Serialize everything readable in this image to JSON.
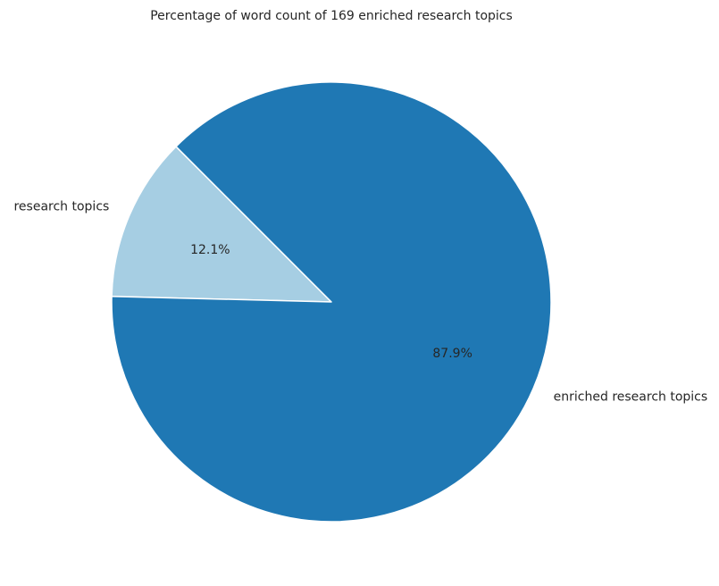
{
  "chart_data": {
    "type": "pie",
    "title": "Percentage of word count of 169 enriched research topics",
    "slices": [
      {
        "label": "research topics",
        "value": 12.1,
        "pct_label": "12.1%",
        "color": "#a6cee3"
      },
      {
        "label": "enriched research topics",
        "value": 87.9,
        "pct_label": "87.9%",
        "color": "#1f78b4"
      }
    ],
    "start_angle_deg": 135,
    "direction": "counterclockwise",
    "edge_color": "#ffffff",
    "legend": "none"
  }
}
